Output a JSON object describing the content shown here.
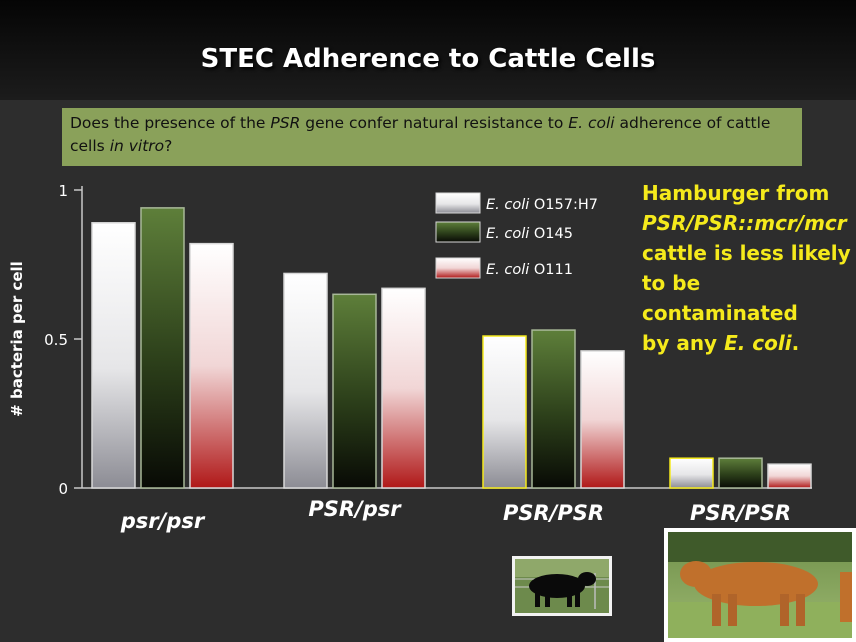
{
  "title": "STEC Adherence to Cattle Cells",
  "question": {
    "p1": "Does the presence of the ",
    "gene": "PSR",
    "p2": " gene confer natural resistance to ",
    "ecoli": "E. coli",
    "p3": " adherence of cattle cells ",
    "invitro": "in vitro",
    "p4": "?"
  },
  "callout": {
    "line1": "Hamburger from",
    "line2": "PSR/PSR::mcr/mcr",
    "line3": "cattle is less likely",
    "line4": "to be",
    "line5": "contaminated",
    "line6_prefix": "by any ",
    "line6_ecoli": "E. coli",
    "line6_suffix": "."
  },
  "chart_data": {
    "type": "bar",
    "ylabel": "# bacteria per cell",
    "ylim": [
      0,
      1
    ],
    "yticks": [
      "0",
      "0.5",
      "1"
    ],
    "categories": [
      "psr/psr",
      "PSR/psr",
      "PSR/PSR",
      "PSR/PSR"
    ],
    "series": [
      {
        "name_italic": "E. coli",
        "name_rest": " O157:H7",
        "values": [
          0.89,
          0.72,
          0.51,
          0.1
        ],
        "color": "#ffffff"
      },
      {
        "name_italic": "E. coli",
        "name_rest": " O145",
        "values": [
          0.94,
          0.65,
          0.53,
          0.1
        ],
        "color": "#4a6a2c"
      },
      {
        "name_italic": "E. coli",
        "name_rest": " O111",
        "values": [
          0.82,
          0.67,
          0.46,
          0.08
        ],
        "color": "#b01818"
      }
    ],
    "highlight_color": "#f5ea1c",
    "highlight_groups": [
      2,
      3
    ],
    "grid": false,
    "legend_placement": "top-right"
  },
  "photos": {
    "black_cow_icon": "black-cow-photo",
    "red_cow_icon": "red-cow-photo"
  }
}
